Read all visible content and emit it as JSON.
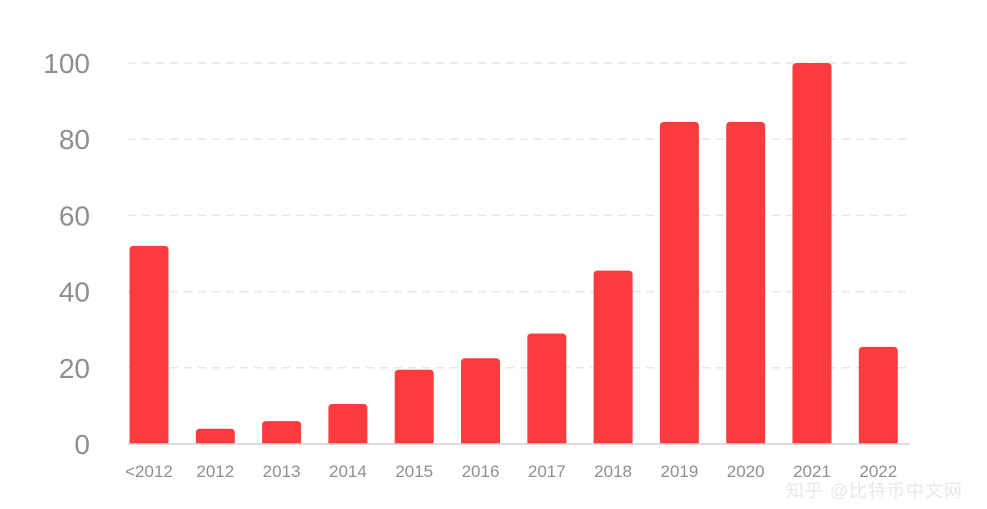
{
  "chart_data": {
    "type": "bar",
    "categories": [
      "<2012",
      "2012",
      "2013",
      "2014",
      "2015",
      "2016",
      "2017",
      "2018",
      "2019",
      "2020",
      "2021",
      "2022"
    ],
    "values": [
      52,
      4,
      6,
      10.5,
      19.5,
      22.5,
      29,
      45.5,
      84.5,
      84.5,
      100,
      25.5
    ],
    "title": "",
    "xlabel": "",
    "ylabel": "",
    "ylim": [
      0,
      100
    ],
    "yticks": [
      0,
      20,
      40,
      60,
      80,
      100
    ],
    "grid": true,
    "colors": {
      "bar": "#FF3B3F",
      "grid": "#e5e5ea",
      "axis": "#d1d1d6",
      "tick_text": "#8e8e93"
    }
  },
  "watermark": "知乎 @比特币中文网"
}
